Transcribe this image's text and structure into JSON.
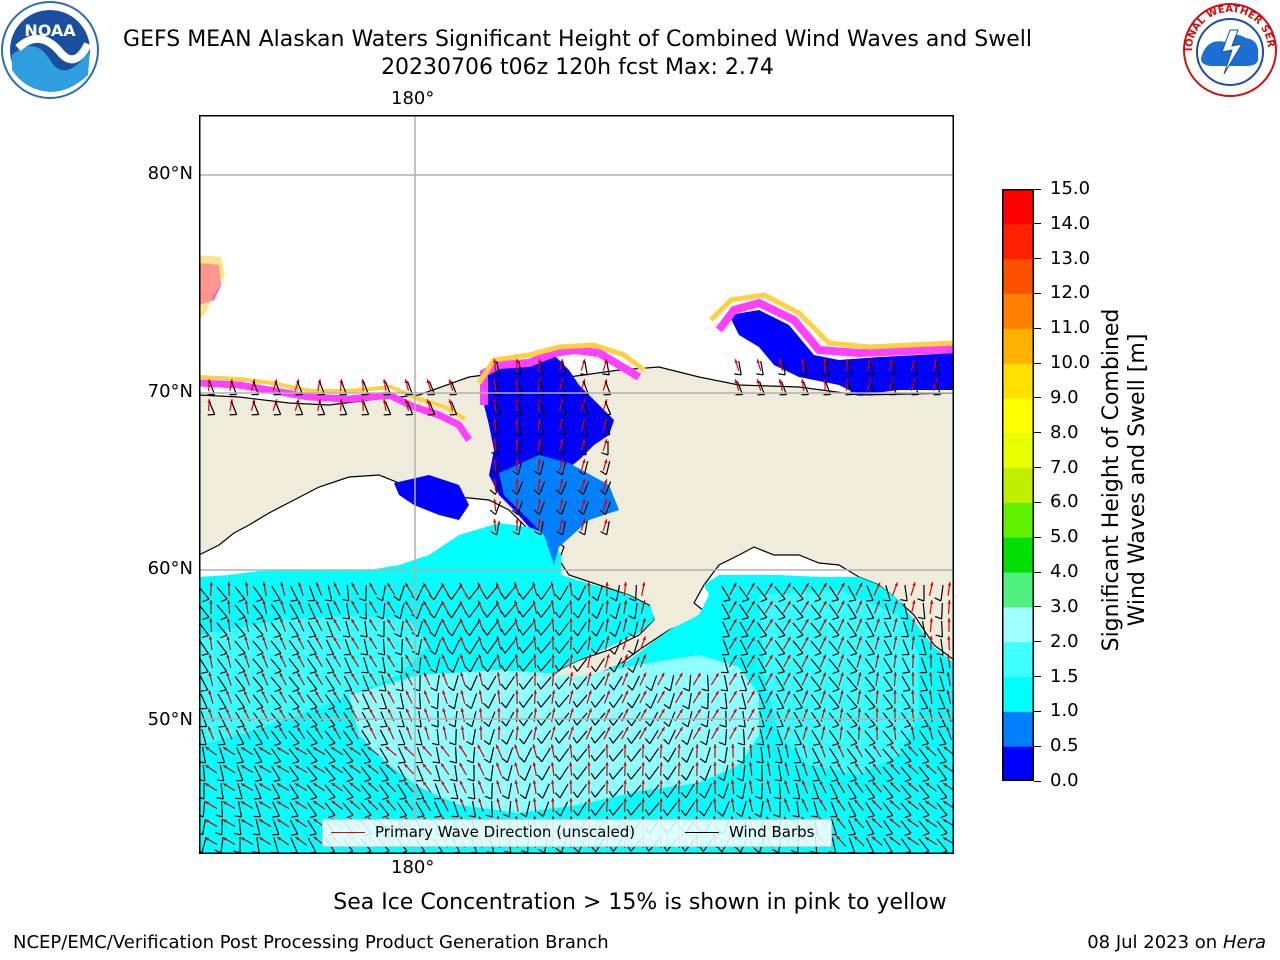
{
  "header": {
    "title": "GEFS MEAN Alaskan Waters Significant Height of Combined Wind Waves and Swell",
    "subtitle": "20230706 t06z 120h fcst   Max: 2.74"
  },
  "logos": {
    "left": {
      "name": "noaa-logo",
      "text": "NOAA"
    },
    "right": {
      "name": "national-weather-service-logo",
      "text": "NATIONAL WEATHER SERVICE"
    }
  },
  "map": {
    "lat_labels": [
      "80°N",
      "70°N",
      "60°N",
      "50°N"
    ],
    "lon_label_top": "180°",
    "lon_label_bottom": "180°",
    "land_color": "#efecdc",
    "grid_color": "#b0b0b0"
  },
  "legend": {
    "items": [
      {
        "label": "Primary Wave Direction (unscaled)",
        "color": "#e00000"
      },
      {
        "label": "Wind Barbs",
        "color": "#000000"
      }
    ]
  },
  "colorbar": {
    "label": "Significant Height of Combined\nWind Waves and Swell [m]",
    "label_line1": "Significant Height of Combined",
    "label_line2": "Wind Waves and Swell [m]",
    "ticks": [
      "0.0",
      "0.5",
      "1.0",
      "1.5",
      "2.0",
      "3.0",
      "4.0",
      "5.0",
      "6.0",
      "7.0",
      "8.0",
      "9.0",
      "10.0",
      "11.0",
      "12.0",
      "13.0",
      "14.0",
      "15.0"
    ],
    "colors": [
      "#0000ff",
      "#0080ff",
      "#00ffff",
      "#40ffff",
      "#a0ffff",
      "#50f080",
      "#00e000",
      "#60f000",
      "#c0f000",
      "#e8ff00",
      "#ffff00",
      "#ffe000",
      "#ffb000",
      "#ff8000",
      "#ff5000",
      "#ff2000",
      "#ff0000"
    ]
  },
  "chart_data": {
    "type": "heatmap",
    "title": "GEFS MEAN Alaskan Waters Significant Height of Combined Wind Waves and Swell",
    "max_value": 2.74,
    "units": "m",
    "value_range": [
      0.0,
      15.0
    ]
  },
  "note": "Sea Ice Concentration > 15% is shown in pink to yellow",
  "footer": {
    "left": "NCEP/EMC/Verification Post Processing Product Generation Branch",
    "right_date": "08 Jul 2023 on ",
    "right_host": "Hera"
  }
}
